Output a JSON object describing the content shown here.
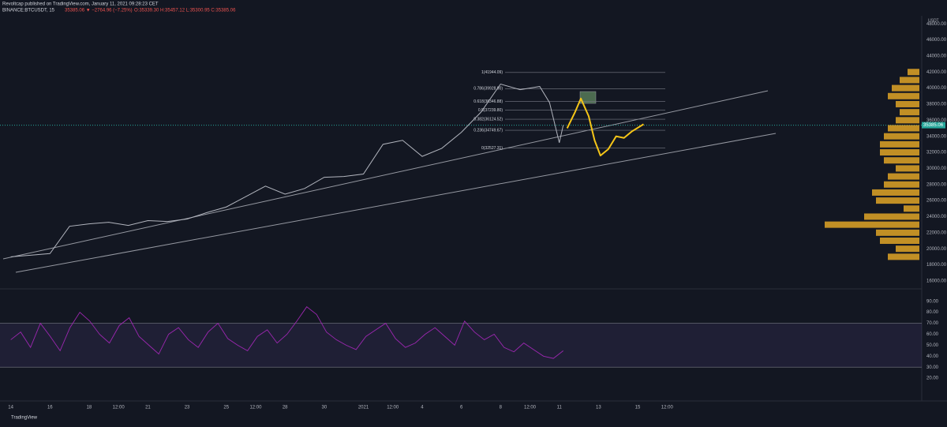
{
  "header": {
    "publisher": "Revoltcap published on TradingView.com, January 11, 2021 09:28:23 CET",
    "symbol": "BINANCE:BTCUSDT, 15",
    "change": "35385.06 ▼ −2764.96 (−7.25%)",
    "ohlc": "O:35339.30 H:35457.12 L:35300.95 C:35385.06"
  },
  "footer": {
    "brand": "TradingView"
  },
  "chart_data": [
    {
      "type": "line",
      "name": "price",
      "unit": "USDT",
      "x": [
        0,
        1,
        2,
        3,
        4,
        5,
        6,
        7,
        8,
        9,
        10,
        11,
        12,
        13,
        14,
        15,
        16,
        17,
        18,
        19,
        20,
        21,
        22,
        23,
        24,
        25,
        26,
        27,
        27.5,
        28,
        28.2
      ],
      "values": [
        19000,
        19200,
        19400,
        22800,
        23100,
        23300,
        22900,
        23500,
        23400,
        23700,
        24500,
        25200,
        26500,
        27800,
        26800,
        27500,
        28900,
        29000,
        29300,
        33000,
        33500,
        31500,
        32500,
        34500,
        37000,
        40500,
        39800,
        40200,
        38200,
        33200,
        35385.06
      ],
      "color": "#b2b5be",
      "projection": {
        "color": "#f5c518",
        "x": [
          28.4,
          28.8,
          29.1,
          29.5,
          29.8,
          30.1,
          30.5,
          30.9,
          31.3,
          31.7,
          32.3
        ],
        "values": [
          35000,
          37000,
          38700,
          36500,
          33500,
          31600,
          32400,
          34000,
          33800,
          34600,
          35500
        ]
      },
      "fib": [
        {
          "label": "1(41944.09)",
          "value": 41944.09
        },
        {
          "label": "0.786(39928.90)",
          "value": 39928.9
        },
        {
          "label": "0.618(38346.88)",
          "value": 38346.88
        },
        {
          "label": "0.5(37239.80)",
          "value": 37239.8
        },
        {
          "label": "0.382(36124.52)",
          "value": 36124.52
        },
        {
          "label": "0.236(34749.67)",
          "value": 34749.67
        },
        {
          "label": "0(32527.31)",
          "value": 32527.31
        }
      ],
      "last_price": {
        "value": 35385.06,
        "label": "35385.06"
      },
      "xlim": [
        -0.55,
        46.5
      ],
      "xticks": [
        {
          "value": 0,
          "label": "14"
        },
        {
          "value": 2,
          "label": "16"
        },
        {
          "value": 4,
          "label": "18"
        },
        {
          "value": 5.5,
          "label": "12:00"
        },
        {
          "value": 7,
          "label": "21"
        },
        {
          "value": 9,
          "label": "23"
        },
        {
          "value": 11,
          "label": "25"
        },
        {
          "value": 12.5,
          "label": "12:00"
        },
        {
          "value": 14,
          "label": "28"
        },
        {
          "value": 16,
          "label": "30"
        },
        {
          "value": 18,
          "label": "2021"
        },
        {
          "value": 19.5,
          "label": "12:00"
        },
        {
          "value": 21,
          "label": "4"
        },
        {
          "value": 23,
          "label": "6"
        },
        {
          "value": 25,
          "label": "8"
        },
        {
          "value": 26.5,
          "label": "12:00"
        },
        {
          "value": 28,
          "label": "11"
        },
        {
          "value": 30,
          "label": "13"
        },
        {
          "value": 32,
          "label": "15"
        },
        {
          "value": 33.5,
          "label": "12:00"
        }
      ],
      "ylim": [
        15400,
        49000
      ],
      "yticks": [
        {
          "value": 16000,
          "label": "16000.00"
        },
        {
          "value": 18000,
          "label": "18000.00"
        },
        {
          "value": 20000,
          "label": "20000.00"
        },
        {
          "value": 22000,
          "label": "22000.00"
        },
        {
          "value": 24000,
          "label": "24000.00"
        },
        {
          "value": 26000,
          "label": "26000.00"
        },
        {
          "value": 28000,
          "label": "28000.00"
        },
        {
          "value": 30000,
          "label": "30000.00"
        },
        {
          "value": 32000,
          "label": "32000.00"
        },
        {
          "value": 34000,
          "label": "34000.00"
        },
        {
          "value": 36000,
          "label": "36000.00"
        },
        {
          "value": 38000,
          "label": "38000.00"
        },
        {
          "value": 40000,
          "label": "40000.00"
        },
        {
          "value": 42000,
          "label": "42000.00"
        },
        {
          "value": 44000,
          "label": "44000.00"
        },
        {
          "value": 46000,
          "label": "46000.00"
        },
        {
          "value": 48000,
          "label": "48000.00"
        }
      ]
    },
    {
      "type": "volume_profile",
      "color": "#e0a526",
      "levels": [
        19000,
        20000,
        21000,
        22000,
        23000,
        24000,
        25000,
        26000,
        27000,
        28000,
        29000,
        30000,
        31000,
        32000,
        33000,
        34000,
        35000,
        36000,
        37000,
        38000,
        39000,
        40000,
        41000,
        42000
      ],
      "values": [
        40,
        30,
        50,
        55,
        120,
        70,
        20,
        55,
        60,
        45,
        40,
        30,
        45,
        50,
        50,
        45,
        40,
        30,
        25,
        30,
        40,
        35,
        25,
        15
      ],
      "xlim": [
        0,
        140
      ]
    },
    {
      "type": "rsi",
      "color": "#9c27b0",
      "values": [
        55,
        62,
        48,
        70,
        58,
        45,
        66,
        80,
        72,
        60,
        52,
        68,
        75,
        58,
        50,
        42,
        60,
        66,
        55,
        48,
        62,
        70,
        56,
        50,
        45,
        58,
        64,
        52,
        60,
        72,
        85,
        78,
        62,
        55,
        50,
        46,
        58,
        64,
        70,
        56,
        48,
        52,
        60,
        66,
        58,
        50,
        72,
        62,
        55,
        60,
        48,
        44,
        52,
        46,
        40,
        38,
        45
      ],
      "band": [
        30,
        70
      ],
      "ylim": [
        5,
        97
      ],
      "yticks": [
        {
          "value": 90,
          "label": "90.00"
        },
        {
          "value": 80,
          "label": "80.00"
        },
        {
          "value": 70,
          "label": "70.00"
        },
        {
          "value": 60,
          "label": "60.00"
        },
        {
          "value": 50,
          "label": "50.00"
        },
        {
          "value": 40,
          "label": "40.00"
        },
        {
          "value": 30,
          "label": "30.00"
        },
        {
          "value": 20,
          "label": "20.00"
        }
      ]
    }
  ]
}
